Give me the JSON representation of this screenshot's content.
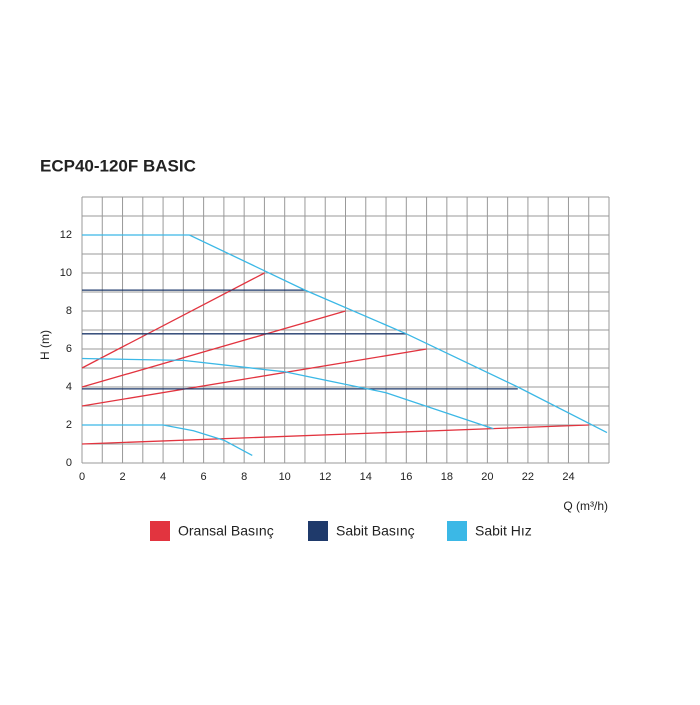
{
  "chart_data": {
    "type": "line",
    "title": "ECP40-120F BASIC",
    "x_label": "Q (m³/h)",
    "y_label": "H (m)",
    "xlim": [
      0,
      26
    ],
    "ylim": [
      0,
      14
    ],
    "xticks": [
      0,
      2,
      4,
      6,
      8,
      10,
      12,
      14,
      16,
      18,
      20,
      22,
      24
    ],
    "yticks": [
      0,
      2,
      4,
      6,
      8,
      10,
      12
    ],
    "xgrid": [
      1,
      3,
      5,
      7,
      9,
      11,
      13,
      15,
      17,
      19,
      21,
      23,
      25,
      26
    ],
    "ygrid": [
      1,
      3,
      5,
      7,
      9,
      11,
      13,
      14
    ],
    "grid": true,
    "series": [
      {
        "name": "Oransal Basınç",
        "color": "#e2343f",
        "lines": [
          {
            "x": [
              0,
              25
            ],
            "y": [
              1,
              2
            ]
          },
          {
            "x": [
              0,
              17
            ],
            "y": [
              3,
              6
            ]
          },
          {
            "x": [
              0,
              13
            ],
            "y": [
              4,
              8
            ]
          },
          {
            "x": [
              0,
              9
            ],
            "y": [
              5,
              10
            ]
          }
        ]
      },
      {
        "name": "Sabit Basınç",
        "color": "#1f3a6b",
        "lines": [
          {
            "x": [
              0,
              11
            ],
            "y": [
              9.1,
              9.1
            ]
          },
          {
            "x": [
              0,
              16
            ],
            "y": [
              6.8,
              6.8
            ]
          },
          {
            "x": [
              0,
              21.5
            ],
            "y": [
              3.9,
              3.9
            ]
          }
        ]
      },
      {
        "name": "Sabit Hız",
        "color": "#3bb8e6",
        "lines": [
          {
            "x": [
              0,
              5.3,
              11,
              16,
              21.5,
              25.9
            ],
            "y": [
              12,
              12,
              9.1,
              6.8,
              4,
              1.6
            ]
          },
          {
            "x": [
              0,
              5,
              10,
              15,
              20.3
            ],
            "y": [
              5.5,
              5.4,
              4.8,
              3.7,
              1.8
            ]
          },
          {
            "x": [
              0,
              4,
              5.5,
              7,
              8.4
            ],
            "y": [
              2,
              2,
              1.7,
              1.2,
              0.4
            ]
          }
        ]
      }
    ]
  }
}
